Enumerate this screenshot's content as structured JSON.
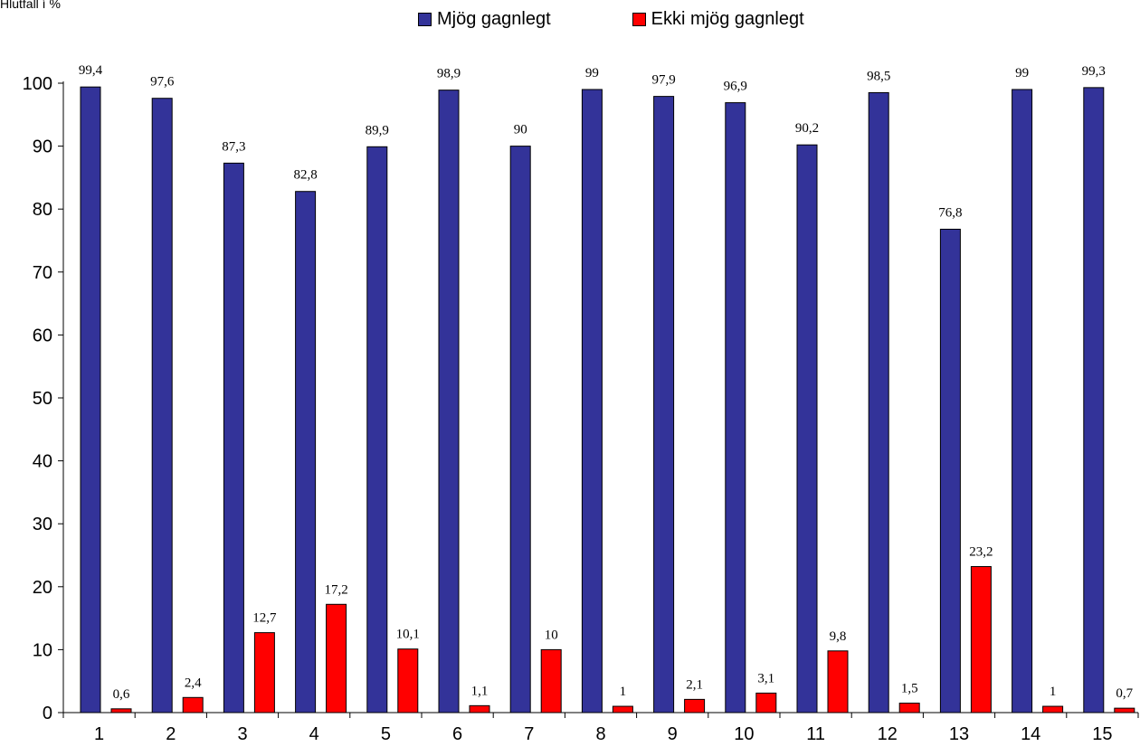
{
  "chart_data": {
    "type": "bar",
    "ylabel": "Hlutfall í %",
    "categories": [
      "1",
      "2",
      "3",
      "4",
      "5",
      "6",
      "7",
      "8",
      "9",
      "10",
      "11",
      "12",
      "13",
      "14",
      "15"
    ],
    "series": [
      {
        "name": "Mjög gagnlegt",
        "color": "#333399",
        "values": [
          99.4,
          97.6,
          87.3,
          82.8,
          89.9,
          98.9,
          90,
          99,
          97.9,
          96.9,
          90.2,
          98.5,
          76.8,
          99,
          99.3
        ],
        "labels": [
          "99,4",
          "97,6",
          "87,3",
          "82,8",
          "89,9",
          "98,9",
          "90",
          "99",
          "97,9",
          "96,9",
          "90,2",
          "98,5",
          "76,8",
          "99",
          "99,3"
        ]
      },
      {
        "name": "Ekki mjög gagnlegt",
        "color": "#ff0000",
        "values": [
          0.6,
          2.4,
          12.7,
          17.2,
          10.1,
          1.1,
          10,
          1,
          2.1,
          3.1,
          9.8,
          1.5,
          23.2,
          1,
          0.7
        ],
        "labels": [
          "0,6",
          "2,4",
          "12,7",
          "17,2",
          "10,1",
          "1,1",
          "10",
          "1",
          "2,1",
          "3,1",
          "9,8",
          "1,5",
          "23,2",
          "1",
          "0,7"
        ]
      }
    ],
    "ylim": [
      0,
      100
    ],
    "yticks": [
      "0",
      "10",
      "20",
      "30",
      "40",
      "50",
      "60",
      "70",
      "80",
      "90",
      "100"
    ],
    "grid": false,
    "legend_position": "top-center"
  }
}
